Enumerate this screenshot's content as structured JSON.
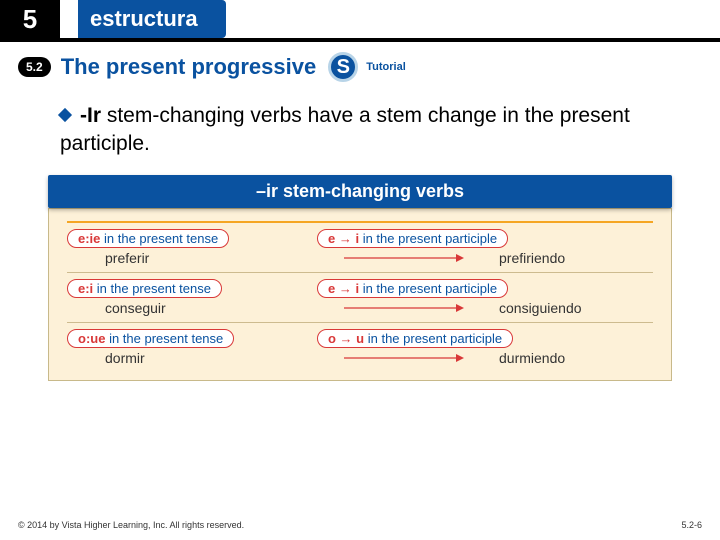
{
  "header": {
    "chapter": "5",
    "label": "estructura"
  },
  "title": {
    "section": "5.2",
    "text": "The present progressive",
    "badge_letter": "S",
    "tutorial": "Tutorial"
  },
  "bullet": {
    "prefix": "-Ir",
    "rest": " stem-changing verbs have a stem change in the present participle."
  },
  "table": {
    "heading": "–ir stem-changing verbs",
    "rows": [
      {
        "left_red": "e:ie",
        "left_blue": " in the present tense",
        "right_red": "e → i",
        "right_blue": " in the present participle",
        "ex_left": "preferir",
        "ex_right": "prefiriendo"
      },
      {
        "left_red": "e:i",
        "left_blue": " in the present tense",
        "right_red": "e → i",
        "right_blue": " in the present participle",
        "ex_left": "conseguir",
        "ex_right": "consiguiendo"
      },
      {
        "left_red": "o:ue",
        "left_blue": " in the present tense",
        "right_red": "o → u",
        "right_blue": " in the present participle",
        "ex_left": "dormir",
        "ex_right": "durmiendo"
      }
    ]
  },
  "footer": {
    "copyright": "© 2014 by Vista Higher Learning, Inc. All rights reserved.",
    "page": "5.2-6"
  },
  "colors": {
    "brand_blue": "#0a52a0",
    "accent_orange": "#f5a623",
    "pill_red": "#d93838",
    "table_bg": "#fdf1d8"
  }
}
